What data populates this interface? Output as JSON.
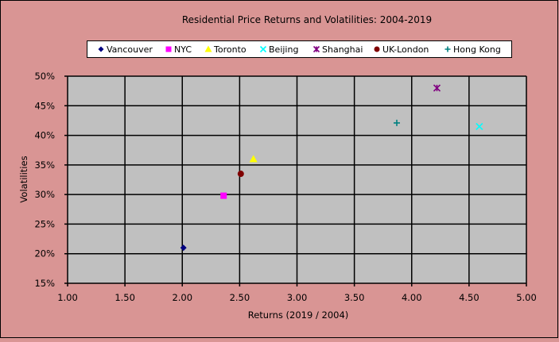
{
  "chart_data": {
    "type": "scatter",
    "title": "Residential Price Returns and Volatilities: 2004-2019",
    "xlabel": "Returns (2019 / 2004)",
    "ylabel": "Volatilities",
    "xlim": [
      1.0,
      5.0
    ],
    "ylim": [
      15,
      50
    ],
    "x_ticks": [
      "1.00",
      "1.50",
      "2.00",
      "2.50",
      "3.00",
      "3.50",
      "4.00",
      "4.50",
      "5.00"
    ],
    "y_ticks": [
      "15%",
      "20%",
      "25%",
      "30%",
      "35%",
      "40%",
      "45%",
      "50%"
    ],
    "grid": true,
    "legend_position": "top",
    "series": [
      {
        "name": "Vancouver",
        "marker": "diamond",
        "color": "#000080",
        "x": 2.01,
        "y": 21.0
      },
      {
        "name": "NYC",
        "marker": "square",
        "color": "#ff00ff",
        "x": 2.36,
        "y": 29.8
      },
      {
        "name": "Toronto",
        "marker": "triangle",
        "color": "#ffff00",
        "x": 2.62,
        "y": 36.0
      },
      {
        "name": "Beijing",
        "marker": "x",
        "color": "#00ffff",
        "x": 4.59,
        "y": 41.5
      },
      {
        "name": "Shanghai",
        "marker": "star",
        "color": "#800080",
        "x": 4.22,
        "y": 48.0
      },
      {
        "name": "UK-London",
        "marker": "circle",
        "color": "#800000",
        "x": 2.51,
        "y": 33.5
      },
      {
        "name": "Hong Kong",
        "marker": "plus",
        "color": "#008080",
        "x": 3.87,
        "y": 42.1
      }
    ]
  }
}
